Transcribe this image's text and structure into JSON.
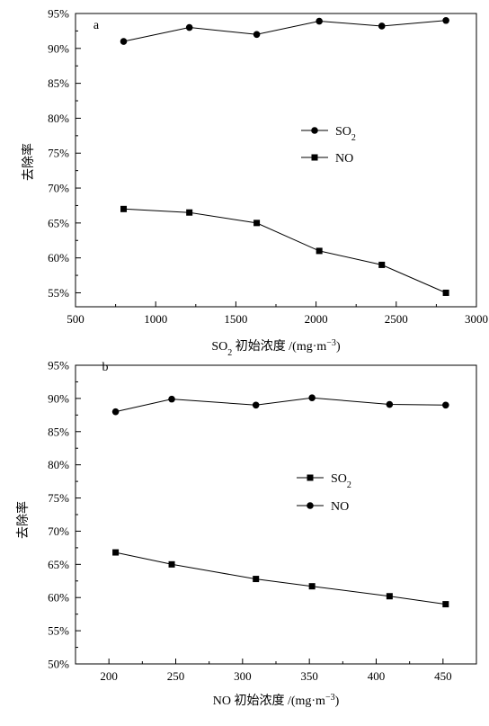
{
  "chart_data": [
    {
      "type": "line",
      "panel_label": "a",
      "xlabel": "SO₂ 初始浓度 /(mg·m⁻³)",
      "ylabel": "去除率",
      "xlim": [
        500,
        3000
      ],
      "ylim": [
        53,
        95
      ],
      "x_ticks": [
        500,
        1000,
        1500,
        2000,
        2500,
        3000
      ],
      "y_ticks": [
        55,
        60,
        65,
        70,
        75,
        80,
        85,
        90,
        95
      ],
      "y_tick_suffix": "%",
      "legend": "center-right",
      "series": [
        {
          "name": "SO₂",
          "marker": "circle",
          "x": [
            800,
            1210,
            1630,
            2020,
            2410,
            2810
          ],
          "y": [
            91.0,
            93.0,
            92.0,
            93.9,
            93.2,
            94.0
          ]
        },
        {
          "name": "NO",
          "marker": "square",
          "x": [
            800,
            1210,
            1630,
            2020,
            2410,
            2810
          ],
          "y": [
            67.0,
            66.5,
            65.0,
            61.0,
            59.0,
            55.0
          ]
        }
      ]
    },
    {
      "type": "line",
      "panel_label": "b",
      "xlabel": "NO 初始浓度 /(mg·m⁻³)",
      "ylabel": "去除率",
      "xlim": [
        175,
        475
      ],
      "ylim": [
        50,
        95
      ],
      "x_ticks": [
        200,
        250,
        300,
        350,
        400,
        450
      ],
      "y_ticks": [
        50,
        55,
        60,
        65,
        70,
        75,
        80,
        85,
        90,
        95
      ],
      "y_tick_suffix": "%",
      "legend": "center-right",
      "series": [
        {
          "name": "SO₂",
          "marker": "square",
          "x": [
            205,
            247,
            310,
            352,
            410,
            452
          ],
          "y": [
            66.8,
            65.0,
            62.8,
            61.7,
            60.2,
            59.0
          ]
        },
        {
          "name": "NO",
          "marker": "circle",
          "x": [
            205,
            247,
            310,
            352,
            410,
            452
          ],
          "y": [
            88.0,
            89.9,
            89.0,
            90.1,
            89.1,
            89.0
          ]
        }
      ]
    }
  ]
}
